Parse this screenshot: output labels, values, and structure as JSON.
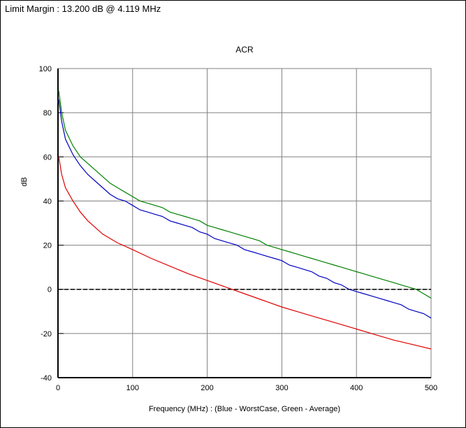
{
  "header": {
    "limit_margin": "Limit Margin : 13.200 dB @ 4.119 MHz"
  },
  "chart_data": {
    "type": "line",
    "title": "ACR",
    "xlabel": "Frequency (MHz) : (Blue - WorstCase, Green - Average)",
    "ylabel": "dB",
    "xlim": [
      0,
      500
    ],
    "ylim": [
      -40,
      100
    ],
    "x_ticks": [
      0,
      100,
      200,
      300,
      400,
      500
    ],
    "y_ticks": [
      -40,
      -20,
      0,
      20,
      40,
      60,
      80,
      100
    ],
    "grid": true,
    "reference_line": {
      "y": 0,
      "style": "dashed"
    },
    "series": [
      {
        "color": "#008000",
        "x": [
          1,
          5,
          10,
          20,
          30,
          40,
          50,
          60,
          70,
          80,
          90,
          100,
          110,
          120,
          130,
          140,
          150,
          160,
          170,
          180,
          190,
          200,
          210,
          220,
          230,
          240,
          250,
          260,
          270,
          280,
          290,
          300,
          310,
          320,
          330,
          340,
          350,
          360,
          370,
          380,
          390,
          400,
          410,
          420,
          430,
          440,
          450,
          460,
          470,
          480,
          490,
          500
        ],
        "values": [
          90,
          80,
          72,
          65,
          60,
          57,
          54,
          51,
          48,
          46,
          44,
          42,
          40,
          39,
          38,
          37,
          35,
          34,
          33,
          32,
          31,
          29,
          28,
          27,
          26,
          25,
          24,
          23,
          22,
          20,
          19,
          18,
          17,
          16,
          15,
          14,
          13,
          12,
          11,
          10,
          9,
          8,
          7,
          6,
          5,
          4,
          3,
          2,
          1,
          0,
          -2,
          -4
        ]
      },
      {
        "color": "#0000c0",
        "x": [
          1,
          5,
          10,
          20,
          30,
          40,
          50,
          60,
          70,
          80,
          90,
          100,
          110,
          120,
          130,
          140,
          150,
          160,
          170,
          180,
          190,
          200,
          210,
          220,
          230,
          240,
          250,
          260,
          270,
          280,
          290,
          300,
          310,
          320,
          330,
          340,
          350,
          360,
          370,
          380,
          390,
          400,
          410,
          420,
          430,
          440,
          450,
          460,
          470,
          480,
          490,
          500
        ],
        "values": [
          86,
          76,
          68,
          61,
          56,
          52,
          49,
          46,
          43,
          41,
          40,
          38,
          36,
          35,
          34,
          33,
          31,
          30,
          29,
          28,
          26,
          25,
          23,
          22,
          21,
          20,
          18,
          17,
          16,
          15,
          14,
          13,
          11,
          10,
          9,
          8,
          6,
          5,
          3,
          2,
          0,
          -1,
          -2,
          -3,
          -4,
          -5,
          -6,
          -7,
          -9,
          -10,
          -11,
          -13
        ]
      },
      {
        "color": "#e00000",
        "x": [
          1,
          5,
          10,
          20,
          30,
          40,
          50,
          60,
          70,
          80,
          90,
          100,
          125,
          150,
          175,
          200,
          225,
          250,
          275,
          300,
          325,
          350,
          375,
          400,
          425,
          450,
          475,
          500
        ],
        "values": [
          60,
          52,
          46,
          40,
          35,
          31,
          28,
          25,
          23,
          21,
          19.5,
          18,
          14,
          10.5,
          7,
          4,
          1,
          -2,
          -5,
          -8,
          -10.5,
          -13,
          -15.5,
          -18,
          -20.5,
          -23,
          -25,
          -27
        ]
      }
    ]
  }
}
